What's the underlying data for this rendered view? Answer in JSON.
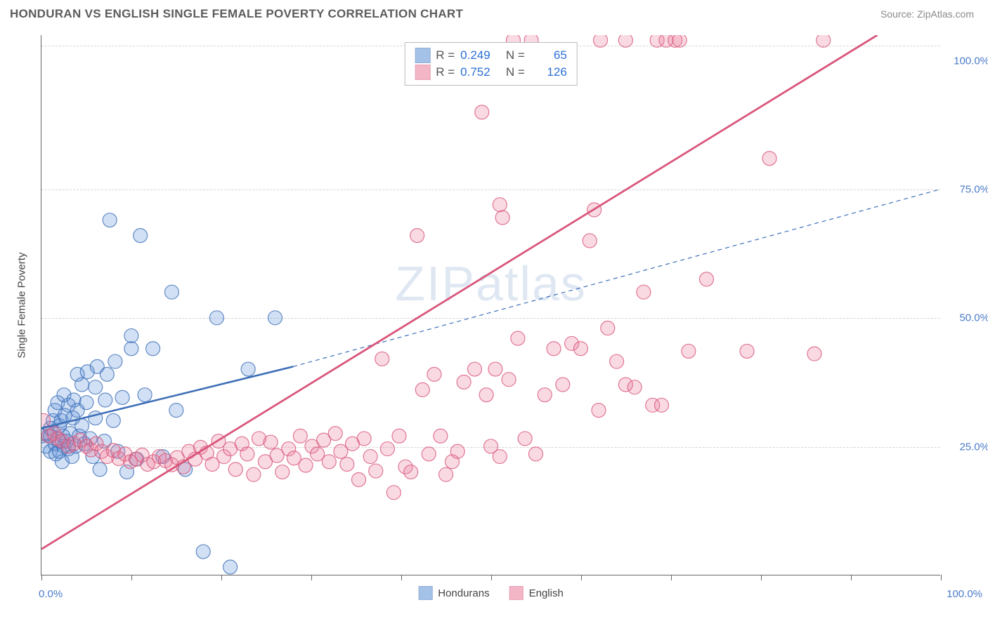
{
  "header": {
    "title": "HONDURAN VS ENGLISH SINGLE FEMALE POVERTY CORRELATION CHART",
    "source_prefix": "Source: ",
    "source_name": "ZipAtlas.com"
  },
  "chart": {
    "type": "scatter",
    "ylabel": "Single Female Poverty",
    "watermark": "ZIPatlas",
    "background_color": "#ffffff",
    "grid_color": "#d5d5d5",
    "axis_color": "#666666",
    "text_color": "#444444",
    "value_color": "#4a7bc8",
    "link_color": "#2b6fd6",
    "xlim": [
      0,
      100
    ],
    "ylim": [
      0,
      105
    ],
    "x_ticks": [
      0,
      10,
      20,
      30,
      40,
      50,
      60,
      70,
      80,
      90,
      100
    ],
    "y_gridlines": [
      25,
      50,
      75,
      103
    ],
    "y_tick_labels": [
      {
        "value": 25,
        "label": "25.0%"
      },
      {
        "value": 50,
        "label": "50.0%"
      },
      {
        "value": 75,
        "label": "75.0%"
      },
      {
        "value": 100,
        "label": "100.0%"
      }
    ],
    "x_axis_end_labels": [
      {
        "value": 0,
        "label": "0.0%"
      },
      {
        "value": 100,
        "label": "100.0%"
      }
    ],
    "marker_radius": 10,
    "marker_fill_opacity": 0.28,
    "marker_stroke_opacity": 0.8,
    "marker_stroke_width": 1.2,
    "series": [
      {
        "name": "Hondurans",
        "color": "#5b8fd6",
        "stroke": "#3f6fb8",
        "R": "0.249",
        "N": "65",
        "trend_solid": {
          "x1": 0,
          "y1": 28.5,
          "x2": 28,
          "y2": 40.5
        },
        "trend_solid_width": 2.6,
        "trend_dash": {
          "x1": 28,
          "y1": 40.5,
          "x2": 100,
          "y2": 75
        },
        "trend_dash_width": 1.2,
        "trend_dash_pattern": "6,5",
        "points": [
          [
            0,
            27
          ],
          [
            0.5,
            25
          ],
          [
            0.5,
            27.5
          ],
          [
            1,
            24
          ],
          [
            1,
            27
          ],
          [
            1,
            28.5
          ],
          [
            1.3,
            30
          ],
          [
            1.5,
            25.5
          ],
          [
            1.5,
            32
          ],
          [
            1.6,
            23.5
          ],
          [
            1.8,
            33.5
          ],
          [
            2,
            24
          ],
          [
            2,
            26
          ],
          [
            2,
            29
          ],
          [
            2.2,
            30
          ],
          [
            2.3,
            22
          ],
          [
            2.4,
            27
          ],
          [
            2.5,
            25
          ],
          [
            2.5,
            35
          ],
          [
            2.6,
            31
          ],
          [
            2.8,
            26
          ],
          [
            3,
            24.5
          ],
          [
            3,
            33
          ],
          [
            3.2,
            27.5
          ],
          [
            3.4,
            23
          ],
          [
            3.5,
            30.5
          ],
          [
            3.6,
            34
          ],
          [
            3.8,
            25
          ],
          [
            4,
            32
          ],
          [
            4,
            39
          ],
          [
            4.2,
            27
          ],
          [
            4.5,
            29
          ],
          [
            4.5,
            37
          ],
          [
            4.8,
            25.5
          ],
          [
            5,
            33.5
          ],
          [
            5.1,
            39.5
          ],
          [
            5.4,
            26.5
          ],
          [
            5.7,
            23
          ],
          [
            6,
            30.5
          ],
          [
            6,
            36.5
          ],
          [
            6.2,
            40.5
          ],
          [
            6.5,
            20.5
          ],
          [
            7,
            26
          ],
          [
            7.1,
            34
          ],
          [
            7.3,
            39
          ],
          [
            7.6,
            69
          ],
          [
            8,
            30
          ],
          [
            8.2,
            41.5
          ],
          [
            8.5,
            24
          ],
          [
            9,
            34.5
          ],
          [
            9.5,
            20
          ],
          [
            10,
            44
          ],
          [
            10,
            46.5
          ],
          [
            10.6,
            22.5
          ],
          [
            11,
            66
          ],
          [
            11.5,
            35
          ],
          [
            12.4,
            44
          ],
          [
            13.5,
            23
          ],
          [
            14.5,
            55
          ],
          [
            15,
            32
          ],
          [
            16,
            20.5
          ],
          [
            18,
            4.5
          ],
          [
            19.5,
            50
          ],
          [
            21,
            1.5
          ],
          [
            23,
            40
          ],
          [
            26,
            50
          ]
        ]
      },
      {
        "name": "English",
        "color": "#e87b9a",
        "stroke": "#d9567b",
        "R": "0.752",
        "N": "126",
        "trend_solid": {
          "x1": 0,
          "y1": 5,
          "x2": 93,
          "y2": 105
        },
        "trend_solid_width": 2.8,
        "trend_dash": null,
        "points": [
          [
            0.2,
            30
          ],
          [
            0.8,
            27
          ],
          [
            1.4,
            27.5
          ],
          [
            1.8,
            26.5
          ],
          [
            2.3,
            26
          ],
          [
            3,
            25
          ],
          [
            3.6,
            25.5
          ],
          [
            4.3,
            26.2
          ],
          [
            5,
            25
          ],
          [
            5.5,
            24.3
          ],
          [
            6.1,
            25.5
          ],
          [
            6.7,
            24
          ],
          [
            7.3,
            23
          ],
          [
            8,
            24.2
          ],
          [
            8.6,
            22.6
          ],
          [
            9.3,
            23.5
          ],
          [
            9.9,
            22
          ],
          [
            10.5,
            22.5
          ],
          [
            11.2,
            23.3
          ],
          [
            11.8,
            21.5
          ],
          [
            12.5,
            22
          ],
          [
            13.1,
            23
          ],
          [
            13.8,
            22.2
          ],
          [
            14.5,
            21.4
          ],
          [
            15.1,
            22.8
          ],
          [
            15.8,
            21
          ],
          [
            16.4,
            24
          ],
          [
            17.1,
            22.5
          ],
          [
            17.7,
            24.8
          ],
          [
            18.4,
            23.7
          ],
          [
            19,
            21.5
          ],
          [
            19.7,
            26
          ],
          [
            20.3,
            23
          ],
          [
            21,
            24.5
          ],
          [
            21.6,
            20.5
          ],
          [
            22.3,
            25.5
          ],
          [
            22.9,
            23.5
          ],
          [
            23.6,
            19.5
          ],
          [
            24.2,
            26.5
          ],
          [
            24.9,
            22
          ],
          [
            25.5,
            25.8
          ],
          [
            26.2,
            23.2
          ],
          [
            26.8,
            20
          ],
          [
            27.5,
            24.5
          ],
          [
            28.1,
            22.7
          ],
          [
            28.8,
            27
          ],
          [
            29.4,
            21.3
          ],
          [
            30.1,
            25
          ],
          [
            30.7,
            23.5
          ],
          [
            31.4,
            26.2
          ],
          [
            32,
            22
          ],
          [
            32.7,
            27.5
          ],
          [
            33.3,
            24
          ],
          [
            34,
            21.5
          ],
          [
            34.6,
            25.5
          ],
          [
            35.3,
            18.5
          ],
          [
            35.9,
            26.5
          ],
          [
            36.6,
            23
          ],
          [
            37.2,
            20.2
          ],
          [
            37.9,
            42
          ],
          [
            38.5,
            24.5
          ],
          [
            39.2,
            16
          ],
          [
            39.8,
            27
          ],
          [
            40.5,
            21
          ],
          [
            41.1,
            20
          ],
          [
            41.8,
            66
          ],
          [
            42.4,
            36
          ],
          [
            43.1,
            23.5
          ],
          [
            43.7,
            39
          ],
          [
            44.4,
            27
          ],
          [
            45,
            19.5
          ],
          [
            45.7,
            22
          ],
          [
            46.3,
            24
          ],
          [
            47,
            37.5
          ],
          [
            48.2,
            40
          ],
          [
            49,
            90
          ],
          [
            49.5,
            35
          ],
          [
            50,
            25
          ],
          [
            50.5,
            40
          ],
          [
            51,
            23
          ],
          [
            51,
            72
          ],
          [
            51.3,
            69.5
          ],
          [
            52,
            38
          ],
          [
            52.5,
            104
          ],
          [
            53,
            46
          ],
          [
            53.8,
            26.5
          ],
          [
            54.5,
            104
          ],
          [
            55,
            23.5
          ],
          [
            56,
            35
          ],
          [
            57,
            44
          ],
          [
            58,
            37
          ],
          [
            59,
            45
          ],
          [
            60,
            44
          ],
          [
            61,
            65
          ],
          [
            61.5,
            71
          ],
          [
            62,
            32
          ],
          [
            62.2,
            104
          ],
          [
            63,
            48
          ],
          [
            64,
            41.5
          ],
          [
            65,
            37
          ],
          [
            65,
            104
          ],
          [
            66,
            36.5
          ],
          [
            67,
            55
          ],
          [
            68,
            33
          ],
          [
            68.5,
            104
          ],
          [
            69,
            33
          ],
          [
            69.5,
            104
          ],
          [
            70.5,
            104
          ],
          [
            71,
            104
          ],
          [
            72,
            43.5
          ],
          [
            74,
            57.5
          ],
          [
            78.5,
            43.5
          ],
          [
            81,
            81
          ],
          [
            87,
            104
          ],
          [
            86,
            43
          ]
        ]
      }
    ],
    "legend": {
      "position": "bottom-center",
      "items": [
        {
          "label": "Hondurans",
          "series": 0
        },
        {
          "label": "English",
          "series": 1
        }
      ]
    }
  }
}
